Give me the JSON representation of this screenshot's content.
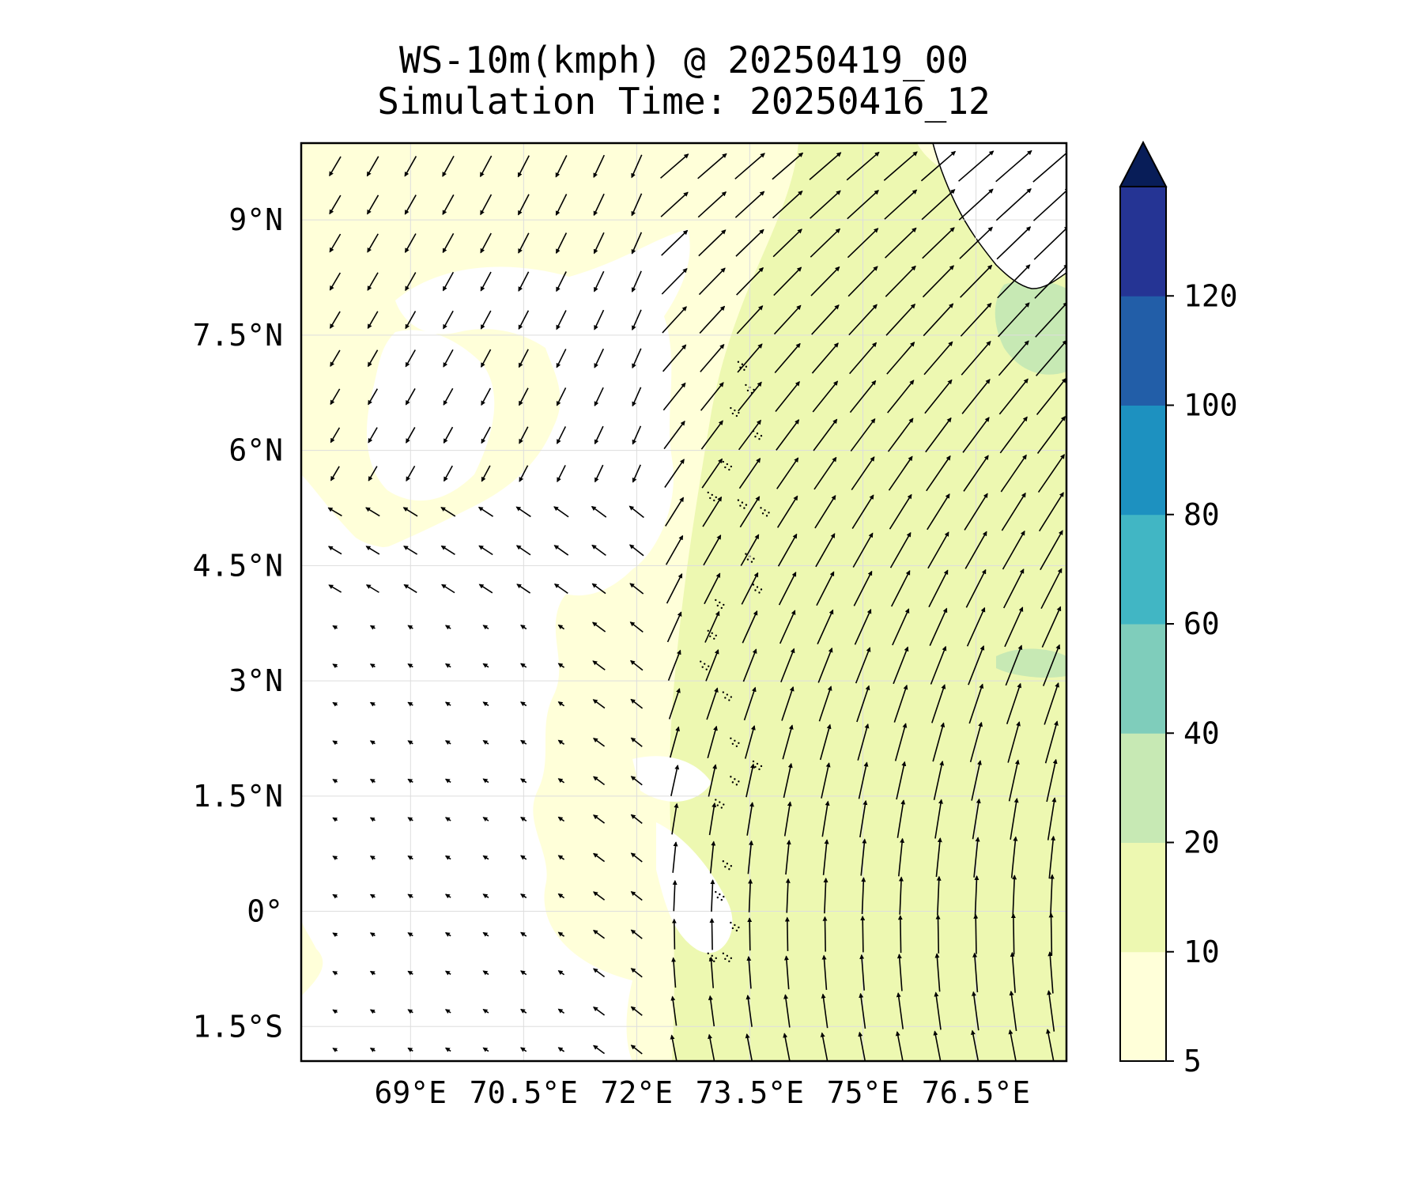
{
  "title": {
    "line1": "WS-10m(kmph) @ 20250419_00",
    "line2": "Simulation Time: 20250416_12"
  },
  "map": {
    "lon_range": [
      67.55,
      77.7
    ],
    "lat_range": [
      -1.95,
      10.0
    ],
    "x_ticks": [
      {
        "value": 69.0,
        "label": "69°E"
      },
      {
        "value": 70.5,
        "label": "70.5°E"
      },
      {
        "value": 72.0,
        "label": "72°E"
      },
      {
        "value": 73.5,
        "label": "73.5°E"
      },
      {
        "value": 75.0,
        "label": "75°E"
      },
      {
        "value": 76.5,
        "label": "76.5°E"
      }
    ],
    "y_ticks": [
      {
        "value": 9.0,
        "label": "9°N"
      },
      {
        "value": 7.5,
        "label": "7.5°N"
      },
      {
        "value": 6.0,
        "label": "6°N"
      },
      {
        "value": 4.5,
        "label": "4.5°N"
      },
      {
        "value": 3.0,
        "label": "3°N"
      },
      {
        "value": 1.5,
        "label": "1.5°N"
      },
      {
        "value": 0.0,
        "label": "0°"
      },
      {
        "value": -1.5,
        "label": "1.5°S"
      }
    ],
    "grid": true,
    "vectors": "quiver arrows of 10 m wind, pointing roughly north-west over western region turning to north-east / north over eastern region"
  },
  "colorbar": {
    "orientation": "vertical",
    "extend": "max",
    "ticks": [
      "5",
      "10",
      "20",
      "40",
      "60",
      "80",
      "100",
      "120"
    ],
    "levels": [
      5,
      10,
      20,
      40,
      60,
      80,
      100,
      120
    ],
    "colors": [
      "#ffffd9",
      "#edf8b1",
      "#c7e9b4",
      "#7fcdbb",
      "#41b6c4",
      "#1d91c0",
      "#225ea8",
      "#253494"
    ],
    "extend_color": "#081d58"
  },
  "colors": {
    "land_bg": "#ffffff",
    "low_wind": "#ffffd9",
    "mid_wind": "#edf8b1",
    "higher_wind": "#c7e9b4"
  },
  "chart_data": {
    "type": "heatmap",
    "title": "WS-10m(kmph) @ 20250419_00 / Simulation Time: 20250416_12",
    "xlabel": "",
    "ylabel": "",
    "xlim": [
      67.55,
      77.7
    ],
    "ylim": [
      -1.95,
      10.0
    ],
    "levels": [
      5,
      10,
      20,
      40,
      60,
      80,
      100,
      120
    ]
  }
}
